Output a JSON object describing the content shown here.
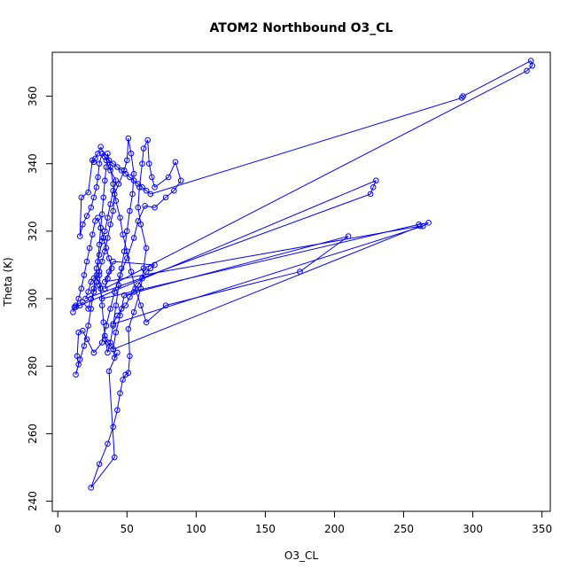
{
  "chart_data": {
    "type": "line",
    "title": "ATOM2 Northbound O3_CL",
    "xlabel": "O3_CL",
    "ylabel": "Theta (K)",
    "xlim": [
      -4,
      356
    ],
    "ylim": [
      237,
      373
    ],
    "xticks": [
      0,
      50,
      100,
      150,
      200,
      250,
      300,
      350
    ],
    "yticks": [
      240,
      260,
      280,
      300,
      320,
      340,
      360
    ],
    "grid": false,
    "legend": "none",
    "marker": "open-circle",
    "line_color": "#0000ff",
    "series": [
      {
        "points": [
          [
            11,
            296
          ],
          [
            12,
            297.5
          ],
          [
            13,
            298
          ],
          [
            16,
            298
          ],
          [
            18,
            299
          ],
          [
            22,
            297
          ],
          [
            24,
            300
          ],
          [
            26,
            302
          ],
          [
            28,
            305
          ],
          [
            30,
            308
          ],
          [
            32,
            311
          ],
          [
            34,
            314
          ],
          [
            36,
            318
          ],
          [
            38,
            322
          ],
          [
            40,
            326
          ],
          [
            41,
            331
          ],
          [
            44,
            334
          ],
          [
            48,
            338
          ],
          [
            50,
            341
          ],
          [
            51,
            347.5
          ],
          [
            53,
            343
          ],
          [
            55,
            337
          ],
          [
            54,
            331
          ],
          [
            52,
            326
          ],
          [
            50,
            320
          ],
          [
            48,
            314
          ],
          [
            46,
            309
          ],
          [
            44,
            304
          ],
          [
            42,
            298
          ],
          [
            40,
            292
          ],
          [
            38,
            287
          ],
          [
            36,
            284
          ],
          [
            34,
            289
          ],
          [
            33,
            293
          ],
          [
            32,
            298
          ],
          [
            31,
            303
          ],
          [
            30,
            307
          ],
          [
            29,
            311
          ],
          [
            30,
            316
          ],
          [
            31,
            321
          ],
          [
            32,
            325
          ],
          [
            33,
            330
          ],
          [
            34,
            335
          ],
          [
            35,
            339
          ],
          [
            36,
            343
          ],
          [
            38,
            339
          ],
          [
            40,
            334
          ],
          [
            42,
            329
          ],
          [
            45,
            324
          ],
          [
            47,
            319
          ],
          [
            50,
            314
          ],
          [
            53,
            308
          ],
          [
            56,
            303
          ],
          [
            60,
            298
          ],
          [
            64,
            293
          ],
          [
            78,
            298
          ],
          [
            175,
            308
          ],
          [
            210,
            318.5
          ],
          [
            48,
            301
          ],
          [
            45,
            295
          ],
          [
            42,
            290
          ],
          [
            40,
            285
          ],
          [
            41,
            282.5
          ],
          [
            43,
            284
          ],
          [
            37,
            278.5
          ],
          [
            41,
            253
          ],
          [
            24,
            244
          ],
          [
            30,
            251
          ],
          [
            36,
            257
          ],
          [
            40,
            262
          ],
          [
            43,
            267
          ],
          [
            45,
            272
          ],
          [
            47,
            276
          ],
          [
            49,
            277.5
          ],
          [
            51,
            278
          ],
          [
            52,
            283
          ],
          [
            51,
            291
          ],
          [
            55,
            296
          ],
          [
            60,
            303
          ],
          [
            62,
            309
          ],
          [
            64,
            315
          ],
          [
            60,
            322
          ],
          [
            58,
            327
          ],
          [
            59,
            333
          ],
          [
            61,
            340
          ],
          [
            62,
            344.5
          ],
          [
            65,
            347
          ],
          [
            66,
            340
          ],
          [
            68,
            336
          ],
          [
            70,
            333
          ],
          [
            80,
            336
          ],
          [
            85,
            340.5
          ],
          [
            89,
            335
          ],
          [
            84,
            332
          ],
          [
            78,
            330
          ],
          [
            70,
            327
          ],
          [
            63,
            327.5
          ],
          [
            58,
            323
          ],
          [
            55,
            318
          ],
          [
            50,
            312
          ],
          [
            45,
            307
          ],
          [
            41,
            302
          ],
          [
            38,
            297
          ],
          [
            35,
            292
          ],
          [
            32,
            287
          ],
          [
            26,
            284
          ],
          [
            21,
            288
          ],
          [
            18,
            290.5
          ],
          [
            15,
            290
          ],
          [
            14,
            283
          ],
          [
            15,
            280.5
          ],
          [
            13,
            277.5
          ],
          [
            16,
            282
          ],
          [
            19,
            286
          ],
          [
            22,
            292
          ],
          [
            24,
            297
          ],
          [
            26,
            303
          ],
          [
            28,
            309
          ],
          [
            30,
            313
          ],
          [
            32,
            317
          ],
          [
            34,
            320
          ],
          [
            36,
            324
          ],
          [
            38,
            328
          ],
          [
            40,
            332
          ],
          [
            42,
            335
          ],
          [
            38,
            338
          ],
          [
            35,
            341
          ],
          [
            31,
            345
          ],
          [
            29,
            343
          ],
          [
            27,
            341.5
          ],
          [
            26,
            340.5
          ],
          [
            25,
            341
          ],
          [
            22,
            331.5
          ],
          [
            17,
            330
          ],
          [
            16,
            318.5
          ],
          [
            18,
            322
          ],
          [
            21,
            324.5
          ],
          [
            24,
            327
          ],
          [
            26,
            330
          ],
          [
            28,
            333
          ],
          [
            29,
            336
          ],
          [
            30,
            340
          ],
          [
            32,
            343
          ],
          [
            34,
            342
          ],
          [
            37,
            341
          ],
          [
            40,
            340
          ],
          [
            43,
            339
          ],
          [
            46,
            338
          ],
          [
            49,
            337
          ],
          [
            52,
            336
          ],
          [
            55,
            335
          ],
          [
            58,
            334
          ],
          [
            61,
            333
          ],
          [
            64,
            332
          ],
          [
            67,
            331
          ],
          [
            292,
            359.5
          ],
          [
            293,
            360
          ],
          [
            342,
            370.5
          ],
          [
            343,
            369
          ],
          [
            339,
            367.5
          ],
          [
            34,
            303
          ],
          [
            36,
            306
          ],
          [
            39,
            309
          ],
          [
            37,
            312
          ],
          [
            35,
            315
          ],
          [
            33,
            318
          ],
          [
            31,
            321
          ],
          [
            29,
            324
          ],
          [
            27,
            323
          ],
          [
            25,
            319
          ],
          [
            23,
            315
          ],
          [
            21,
            311
          ],
          [
            19,
            307
          ],
          [
            17,
            303
          ],
          [
            15,
            300
          ],
          [
            13,
            297.5
          ],
          [
            230,
            335
          ],
          [
            228,
            333
          ],
          [
            226,
            331
          ],
          [
            20,
            300
          ],
          [
            22,
            302
          ],
          [
            24,
            305
          ],
          [
            26,
            306
          ],
          [
            28,
            307
          ],
          [
            30,
            304
          ],
          [
            32,
            300
          ],
          [
            261,
            322
          ],
          [
            268,
            322.5
          ],
          [
            264,
            321.5
          ],
          [
            40,
            292.5
          ],
          [
            43,
            295
          ],
          [
            46,
            297
          ],
          [
            49,
            298
          ],
          [
            52,
            300.5
          ],
          [
            55,
            302
          ],
          [
            58,
            304
          ],
          [
            61,
            306
          ],
          [
            64,
            308
          ],
          [
            67,
            309
          ],
          [
            70,
            310
          ],
          [
            40,
            311
          ],
          [
            37,
            308
          ],
          [
            34,
            305
          ],
          [
            262,
            321.5
          ],
          [
            40,
            285
          ],
          [
            38,
            286
          ],
          [
            36,
            287
          ],
          [
            34,
            288
          ]
        ]
      }
    ]
  }
}
